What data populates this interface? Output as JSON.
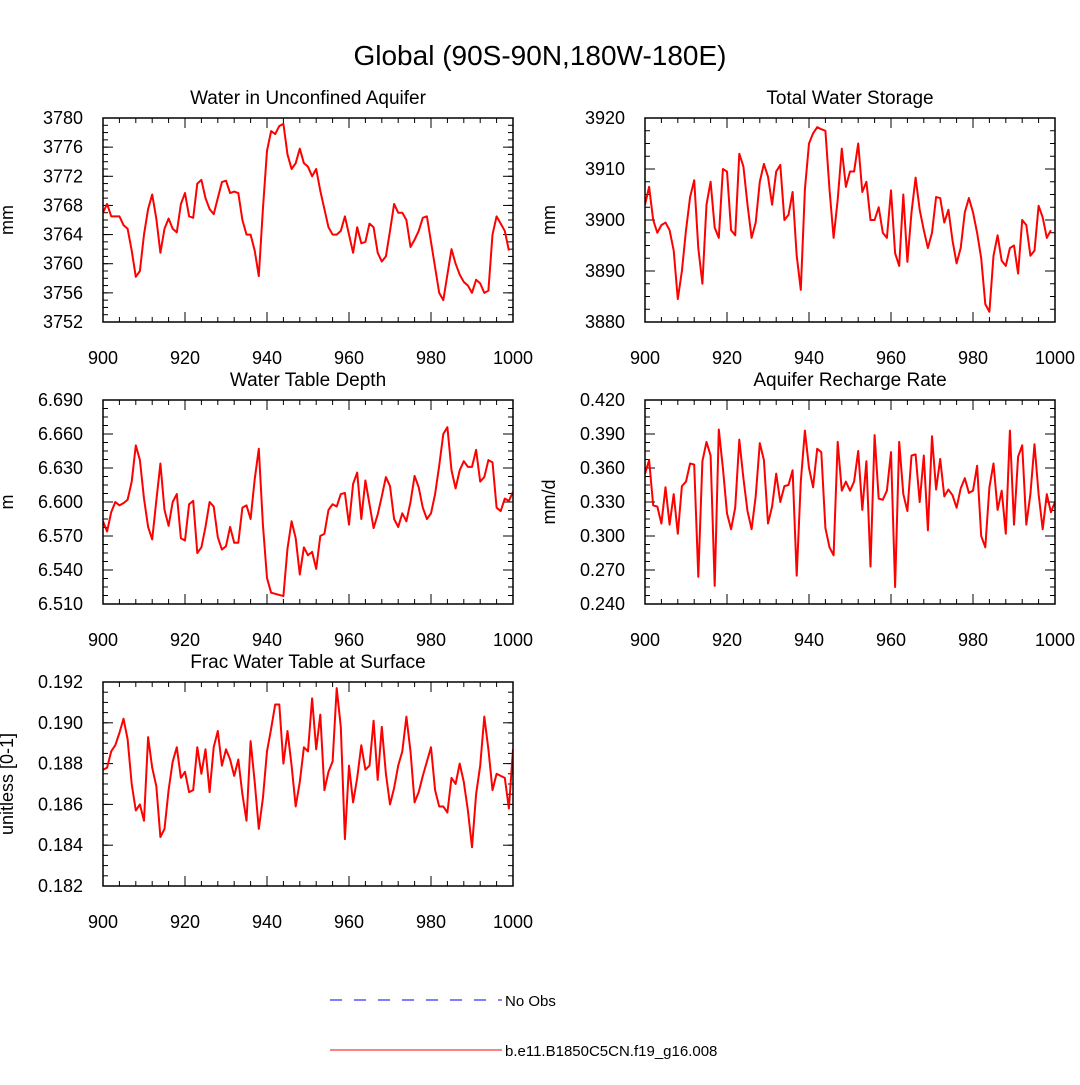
{
  "page_title": "Global (90S-90N,180W-180E)",
  "legend": {
    "entries": [
      {
        "label": "No Obs",
        "color": "#0000ff",
        "style": "dashed"
      },
      {
        "label": "b.e11.B1850C5CN.f19_g16.008",
        "color": "#ff0000",
        "style": "solid"
      }
    ]
  },
  "chart_data": [
    {
      "type": "line",
      "title": "Water in Unconfined Aquifer",
      "xlabel": "",
      "ylabel": "mm",
      "xlim": [
        900,
        1000
      ],
      "ylim": [
        3752,
        3780
      ],
      "xticks": [
        900,
        920,
        940,
        960,
        980,
        1000
      ],
      "yticks": [
        3752,
        3756,
        3760,
        3764,
        3768,
        3772,
        3776,
        3780
      ],
      "ytick_labels": [
        "3752",
        "3756",
        "3760",
        "3764",
        "3768",
        "3772",
        "3776",
        "3780"
      ],
      "x_start": 900,
      "series": [
        {
          "name": "b.e11.B1850C5CN.f19_g16.008",
          "color": "#ff0000",
          "values": [
            3767.0,
            3768.2,
            3766.5,
            3766.5,
            3766.5,
            3765.3,
            3764.8,
            3761.8,
            3758.2,
            3759.0,
            3764.0,
            3767.5,
            3769.5,
            3766.2,
            3761.5,
            3764.8,
            3766.2,
            3764.8,
            3764.3,
            3768.2,
            3769.7,
            3766.5,
            3766.3,
            3771.0,
            3771.5,
            3769.0,
            3767.5,
            3766.8,
            3769.0,
            3771.2,
            3771.4,
            3769.7,
            3769.9,
            3769.7,
            3766.0,
            3764.0,
            3764.0,
            3761.8,
            3758.3,
            3767.5,
            3775.5,
            3778.2,
            3777.8,
            3778.9,
            3779.2,
            3775.0,
            3773.0,
            3773.8,
            3775.8,
            3773.8,
            3773.3,
            3772.0,
            3773.0,
            3770.0,
            3767.5,
            3765.0,
            3764.0,
            3764.0,
            3764.5,
            3766.5,
            3764.0,
            3761.5,
            3765.0,
            3762.8,
            3763.0,
            3765.5,
            3765.0,
            3761.5,
            3760.3,
            3761.0,
            3764.5,
            3768.2,
            3767.0,
            3767.0,
            3766.0,
            3762.3,
            3763.3,
            3764.5,
            3766.3,
            3766.5,
            3763.0,
            3759.5,
            3756.0,
            3755.0,
            3758.5,
            3762.0,
            3760.0,
            3758.5,
            3757.5,
            3757.0,
            3756.0,
            3757.8,
            3757.3,
            3756.0,
            3756.3,
            3764.0,
            3766.5,
            3765.5,
            3764.5,
            3761.8
          ]
        }
      ]
    },
    {
      "type": "line",
      "title": "Total Water Storage",
      "xlabel": "",
      "ylabel": "mm",
      "xlim": [
        900,
        1000
      ],
      "ylim": [
        3880,
        3920
      ],
      "xticks": [
        900,
        920,
        940,
        960,
        980,
        1000
      ],
      "yticks": [
        3880,
        3890,
        3900,
        3910,
        3920
      ],
      "ytick_labels": [
        "3880",
        "3890",
        "3900",
        "3910",
        "3920"
      ],
      "x_start": 900,
      "series": [
        {
          "name": "b.e11.B1850C5CN.f19_g16.008",
          "color": "#ff0000",
          "values": [
            3903.0,
            3906.5,
            3900.0,
            3897.5,
            3899.0,
            3899.5,
            3898.0,
            3894.0,
            3884.5,
            3890.0,
            3898.0,
            3904.5,
            3907.8,
            3894.5,
            3887.5,
            3903.0,
            3907.5,
            3898.5,
            3896.5,
            3910.0,
            3909.5,
            3898.0,
            3897.0,
            3913.0,
            3910.5,
            3903.0,
            3896.5,
            3899.5,
            3907.5,
            3911.0,
            3908.5,
            3903.0,
            3909.5,
            3910.8,
            3900.0,
            3901.0,
            3905.5,
            3893.0,
            3886.3,
            3906.0,
            3915.0,
            3917.0,
            3918.2,
            3917.8,
            3917.5,
            3906.0,
            3896.5,
            3904.0,
            3914.0,
            3906.5,
            3909.5,
            3909.5,
            3915.0,
            3905.5,
            3907.5,
            3900.0,
            3900.0,
            3902.5,
            3897.5,
            3896.5,
            3905.8,
            3893.5,
            3891.0,
            3905.0,
            3891.8,
            3901.5,
            3908.3,
            3902.0,
            3898.0,
            3894.5,
            3897.5,
            3904.5,
            3904.3,
            3899.5,
            3902.0,
            3896.0,
            3891.5,
            3894.5,
            3901.5,
            3904.3,
            3901.5,
            3897.5,
            3892.5,
            3883.5,
            3882.0,
            3893.0,
            3897.0,
            3892.0,
            3891.0,
            3894.5,
            3895.0,
            3889.5,
            3900.0,
            3899.0,
            3893.0,
            3894.0,
            3902.8,
            3900.5,
            3896.5,
            3898.0
          ]
        }
      ]
    },
    {
      "type": "line",
      "title": "Water Table Depth",
      "xlabel": "",
      "ylabel": "m",
      "xlim": [
        900,
        1000
      ],
      "ylim": [
        6.51,
        6.69
      ],
      "xticks": [
        900,
        920,
        940,
        960,
        980,
        1000
      ],
      "yticks": [
        6.51,
        6.54,
        6.57,
        6.6,
        6.63,
        6.66,
        6.69
      ],
      "ytick_labels": [
        "6.510",
        "6.540",
        "6.570",
        "6.600",
        "6.630",
        "6.660",
        "6.690"
      ],
      "x_start": 900,
      "series": [
        {
          "name": "b.e11.B1850C5CN.f19_g16.008",
          "color": "#ff0000",
          "values": [
            6.583,
            6.574,
            6.591,
            6.6,
            6.597,
            6.599,
            6.602,
            6.618,
            6.65,
            6.637,
            6.603,
            6.578,
            6.567,
            6.601,
            6.634,
            6.593,
            6.579,
            6.6,
            6.607,
            6.568,
            6.566,
            6.598,
            6.601,
            6.555,
            6.56,
            6.578,
            6.6,
            6.596,
            6.569,
            6.558,
            6.561,
            6.578,
            6.564,
            6.564,
            6.595,
            6.597,
            6.585,
            6.62,
            6.647,
            6.58,
            6.533,
            6.52,
            6.519,
            6.518,
            6.517,
            6.559,
            6.583,
            6.568,
            6.536,
            6.56,
            6.553,
            6.556,
            6.541,
            6.57,
            6.572,
            6.593,
            6.598,
            6.596,
            6.607,
            6.608,
            6.58,
            6.616,
            6.626,
            6.585,
            6.619,
            6.598,
            6.577,
            6.589,
            6.605,
            6.622,
            6.614,
            6.585,
            6.578,
            6.59,
            6.583,
            6.6,
            6.623,
            6.613,
            6.595,
            6.585,
            6.59,
            6.607,
            6.632,
            6.66,
            6.666,
            6.628,
            6.612,
            6.628,
            6.636,
            6.631,
            6.631,
            6.646,
            6.618,
            6.622,
            6.637,
            6.635,
            6.595,
            6.592,
            6.603,
            6.601,
            6.609
          ]
        }
      ]
    },
    {
      "type": "line",
      "title": "Aquifer Recharge Rate",
      "xlabel": "",
      "ylabel": "mm/d",
      "xlim": [
        900,
        1000
      ],
      "ylim": [
        0.24,
        0.42
      ],
      "xticks": [
        900,
        920,
        940,
        960,
        980,
        1000
      ],
      "yticks": [
        0.24,
        0.27,
        0.3,
        0.33,
        0.36,
        0.39,
        0.42
      ],
      "ytick_labels": [
        "0.240",
        "0.270",
        "0.300",
        "0.330",
        "0.360",
        "0.390",
        "0.420"
      ],
      "x_start": 900,
      "series": [
        {
          "name": "b.e11.B1850C5CN.f19_g16.008",
          "color": "#ff0000",
          "values": [
            0.355,
            0.367,
            0.327,
            0.326,
            0.311,
            0.343,
            0.31,
            0.337,
            0.302,
            0.344,
            0.348,
            0.364,
            0.363,
            0.264,
            0.366,
            0.383,
            0.371,
            0.256,
            0.394,
            0.36,
            0.32,
            0.306,
            0.325,
            0.385,
            0.351,
            0.322,
            0.306,
            0.335,
            0.382,
            0.367,
            0.311,
            0.326,
            0.355,
            0.33,
            0.344,
            0.345,
            0.358,
            0.265,
            0.348,
            0.393,
            0.36,
            0.343,
            0.377,
            0.374,
            0.307,
            0.29,
            0.283,
            0.383,
            0.34,
            0.348,
            0.34,
            0.348,
            0.375,
            0.323,
            0.366,
            0.273,
            0.389,
            0.333,
            0.332,
            0.34,
            0.374,
            0.255,
            0.383,
            0.337,
            0.322,
            0.371,
            0.372,
            0.33,
            0.371,
            0.305,
            0.388,
            0.341,
            0.368,
            0.335,
            0.341,
            0.336,
            0.325,
            0.342,
            0.351,
            0.338,
            0.34,
            0.362,
            0.3,
            0.29,
            0.343,
            0.364,
            0.323,
            0.34,
            0.302,
            0.393,
            0.31,
            0.37,
            0.38,
            0.31,
            0.337,
            0.381,
            0.337,
            0.306,
            0.337,
            0.321,
            0.33
          ]
        }
      ]
    },
    {
      "type": "line",
      "title": "Frac Water Table at Surface",
      "xlabel": "",
      "ylabel": "unitless [0-1]",
      "xlim": [
        900,
        1000
      ],
      "ylim": [
        0.182,
        0.192
      ],
      "xticks": [
        900,
        920,
        940,
        960,
        980,
        1000
      ],
      "yticks": [
        0.182,
        0.184,
        0.186,
        0.188,
        0.19,
        0.192
      ],
      "ytick_labels": [
        "0.182",
        "0.184",
        "0.186",
        "0.188",
        "0.190",
        "0.192"
      ],
      "x_start": 900,
      "series": [
        {
          "name": "b.e11.B1850C5CN.f19_g16.008",
          "color": "#ff0000",
          "values": [
            0.1877,
            0.1878,
            0.1886,
            0.1889,
            0.1895,
            0.1902,
            0.1892,
            0.187,
            0.1857,
            0.186,
            0.1852,
            0.1893,
            0.1878,
            0.1869,
            0.1844,
            0.1848,
            0.1867,
            0.1881,
            0.1888,
            0.1873,
            0.1876,
            0.1866,
            0.1867,
            0.1888,
            0.1875,
            0.1887,
            0.1866,
            0.1888,
            0.1896,
            0.1879,
            0.1887,
            0.1882,
            0.1874,
            0.1882,
            0.1865,
            0.1852,
            0.1891,
            0.1871,
            0.1848,
            0.1863,
            0.1886,
            0.1897,
            0.1909,
            0.1909,
            0.188,
            0.1896,
            0.1879,
            0.1859,
            0.1871,
            0.1888,
            0.1886,
            0.1912,
            0.1887,
            0.1904,
            0.1867,
            0.1876,
            0.1881,
            0.1917,
            0.1898,
            0.1843,
            0.1879,
            0.1861,
            0.1873,
            0.1889,
            0.1877,
            0.1879,
            0.1901,
            0.1872,
            0.1898,
            0.1875,
            0.186,
            0.1868,
            0.1879,
            0.1886,
            0.1903,
            0.1886,
            0.1861,
            0.1866,
            0.1874,
            0.1881,
            0.1888,
            0.1867,
            0.1859,
            0.1859,
            0.1856,
            0.1873,
            0.187,
            0.188,
            0.1871,
            0.1857,
            0.1839,
            0.1865,
            0.1879,
            0.1903,
            0.1887,
            0.1867,
            0.1875,
            0.1874,
            0.1873,
            0.1858,
            0.1887
          ]
        }
      ]
    }
  ]
}
